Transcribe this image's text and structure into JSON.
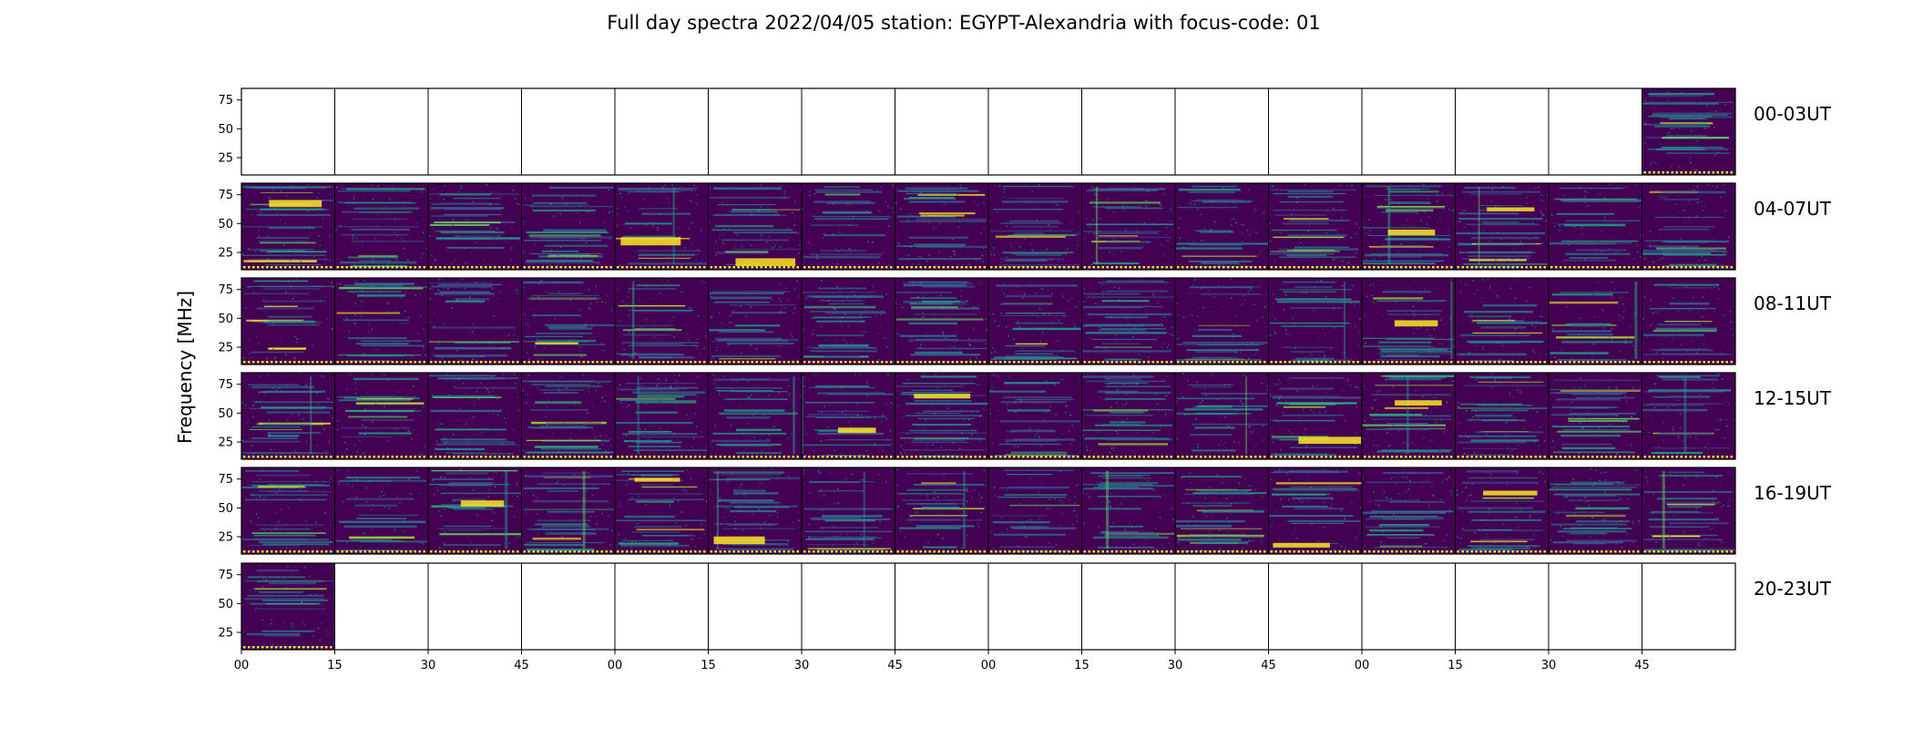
{
  "chart_data": {
    "type": "heatmap",
    "title": "Full day spectra 2022/04/05 station: EGYPT-Alexandria with focus-code: 01",
    "ylabel": "Frequency [MHz]",
    "xlabel": "",
    "y_ticks": [
      "75",
      "50",
      "25"
    ],
    "x_ticks": [
      "00",
      "15",
      "30",
      "45",
      "00",
      "15",
      "30",
      "45",
      "00",
      "15",
      "30",
      "45",
      "00",
      "15",
      "30",
      "45"
    ],
    "colormap": "viridis",
    "colors": {
      "background": "#440154",
      "low": "#3b0f6f",
      "mid": "#21918c",
      "high": "#fde725"
    },
    "rows": [
      {
        "label": "00-03UT",
        "panels_with_data": [
          15
        ]
      },
      {
        "label": "04-07UT",
        "panels_with_data": [
          0,
          1,
          2,
          3,
          4,
          5,
          6,
          7,
          8,
          9,
          10,
          11,
          12,
          13,
          14,
          15
        ]
      },
      {
        "label": "08-11UT",
        "panels_with_data": [
          0,
          1,
          2,
          3,
          4,
          5,
          6,
          7,
          8,
          9,
          10,
          11,
          12,
          13,
          14,
          15
        ]
      },
      {
        "label": "12-15UT",
        "panels_with_data": [
          0,
          1,
          2,
          3,
          4,
          5,
          6,
          7,
          8,
          9,
          10,
          11,
          12,
          13,
          14,
          15
        ]
      },
      {
        "label": "16-19UT",
        "panels_with_data": [
          0,
          1,
          2,
          3,
          4,
          5,
          6,
          7,
          8,
          9,
          10,
          11,
          12,
          13,
          14,
          15
        ]
      },
      {
        "label": "20-23UT",
        "panels_with_data": [
          0
        ]
      }
    ],
    "panels_per_row": 16,
    "minutes_per_panel": 15,
    "y_range_mhz": [
      10,
      85
    ],
    "grid": false
  }
}
